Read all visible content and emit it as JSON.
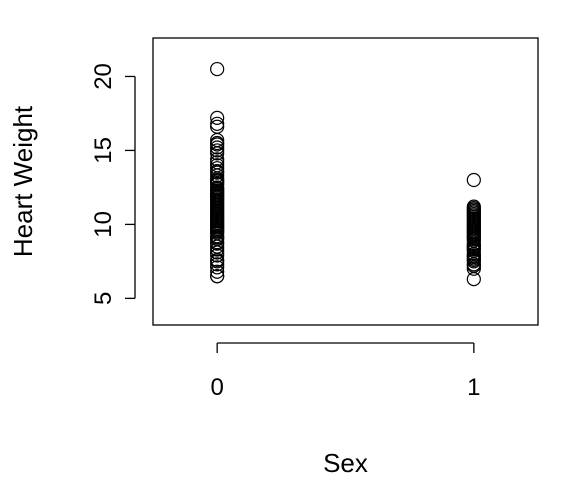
{
  "chart_data": {
    "type": "scatter",
    "title": "",
    "xlabel": "Sex",
    "ylabel": "Heart Weight",
    "xlim": [
      -0.25,
      1.25
    ],
    "ylim": [
      3.2,
      22.6
    ],
    "xticks": [
      0,
      1
    ],
    "xtick_labels": [
      "0",
      "1"
    ],
    "yticks": [
      5,
      10,
      15,
      20
    ],
    "ytick_labels": [
      "5",
      "10",
      "15",
      "20"
    ],
    "grid": false,
    "legend": "none",
    "point_color": "#000000",
    "series": [
      {
        "x": 0,
        "values": [
          6.5,
          6.5,
          6.8,
          7.1,
          7.3,
          7.5,
          7.6,
          7.9,
          8.1,
          8.3,
          8.5,
          8.7,
          8.8,
          9.0,
          9.1,
          9.2,
          9.4,
          9.5,
          9.6,
          9.7,
          9.8,
          9.9,
          10.0,
          10.1,
          10.2,
          10.3,
          10.4,
          10.5,
          10.6,
          10.7,
          10.8,
          10.9,
          11.0,
          11.1,
          11.2,
          11.3,
          11.4,
          11.5,
          11.6,
          11.7,
          11.8,
          11.9,
          12.0,
          12.1,
          12.2,
          12.3,
          12.4,
          12.5,
          12.7,
          12.8,
          12.9,
          13.0,
          13.1,
          13.3,
          13.5,
          13.6,
          13.8,
          14.0,
          14.2,
          14.4,
          14.8,
          15.0,
          15.2,
          15.4,
          15.5,
          15.7,
          16.6,
          16.8,
          17.2,
          20.5
        ]
      },
      {
        "x": 1,
        "values": [
          6.3,
          7.0,
          7.2,
          7.3,
          7.5,
          7.6,
          7.7,
          7.8,
          7.9,
          8.0,
          8.2,
          8.3,
          8.4,
          8.5,
          8.6,
          8.7,
          8.9,
          9.0,
          9.1,
          9.2,
          9.3,
          9.4,
          9.5,
          9.6,
          9.7,
          9.8,
          9.9,
          10.0,
          10.1,
          10.2,
          10.3,
          10.4,
          10.5,
          10.6,
          10.7,
          10.8,
          10.9,
          11.0,
          11.1,
          11.2,
          13.0
        ]
      }
    ]
  }
}
